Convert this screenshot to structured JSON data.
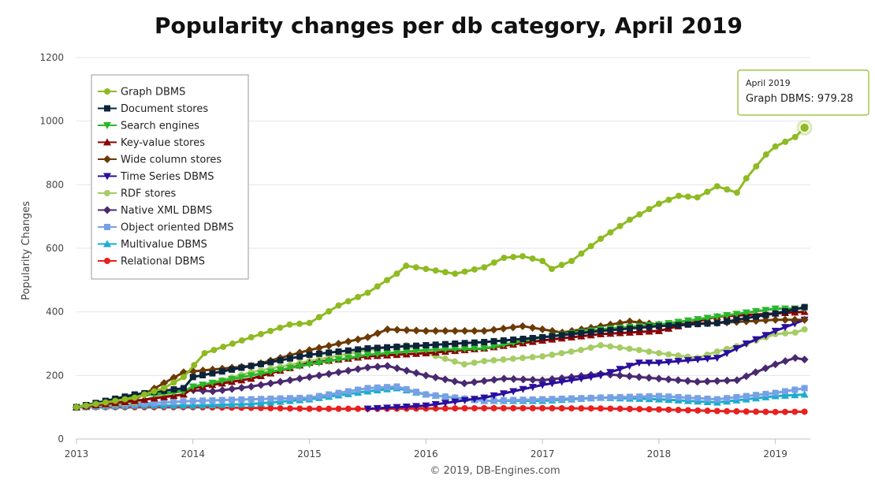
{
  "chart_data": {
    "type": "line",
    "title": "Popularity changes per db category, April 2019",
    "xlabel": "",
    "ylabel": "Popularity Changes",
    "ylim": [
      0,
      1200
    ],
    "yticks": [
      0,
      200,
      400,
      600,
      800,
      1000,
      1200
    ],
    "xlim": [
      2013,
      2019.3
    ],
    "xticks": [
      2013,
      2014,
      2015,
      2016,
      2017,
      2018,
      2019
    ],
    "grid": "horizontal",
    "legend_position": "top-left",
    "credit": "© 2019, DB-Engines.com",
    "tooltip": {
      "date": "April 2019",
      "series": "Graph DBMS",
      "value_text": "979.28",
      "x": 2019.25,
      "y": 979.28
    },
    "series": [
      {
        "name": "Graph DBMS",
        "color": "#8ebb22",
        "marker": "circle",
        "points": [
          [
            2013,
            100
          ],
          [
            2013.5,
            130
          ],
          [
            2013.75,
            160
          ],
          [
            2013.92,
            195
          ],
          [
            2014.1,
            270
          ],
          [
            2014.5,
            320
          ],
          [
            2014.83,
            360
          ],
          [
            2015,
            365
          ],
          [
            2015.25,
            420
          ],
          [
            2015.5,
            460
          ],
          [
            2015.75,
            520
          ],
          [
            2015.83,
            545
          ],
          [
            2016,
            535
          ],
          [
            2016.25,
            520
          ],
          [
            2016.5,
            540
          ],
          [
            2016.67,
            570
          ],
          [
            2016.83,
            575
          ],
          [
            2017,
            560
          ],
          [
            2017.08,
            535
          ],
          [
            2017.25,
            560
          ],
          [
            2017.5,
            630
          ],
          [
            2017.75,
            690
          ],
          [
            2018,
            740
          ],
          [
            2018.17,
            765
          ],
          [
            2018.33,
            760
          ],
          [
            2018.5,
            795
          ],
          [
            2018.67,
            775
          ],
          [
            2018.75,
            820
          ],
          [
            2018.92,
            895
          ],
          [
            2019,
            920
          ],
          [
            2019.17,
            950
          ],
          [
            2019.25,
            979.28
          ]
        ]
      },
      {
        "name": "Document stores",
        "color": "#0d233a",
        "marker": "square",
        "points": [
          [
            2013,
            100
          ],
          [
            2013.5,
            140
          ],
          [
            2013.92,
            160
          ],
          [
            2014,
            195
          ],
          [
            2014.5,
            230
          ],
          [
            2015,
            265
          ],
          [
            2015.5,
            285
          ],
          [
            2016,
            295
          ],
          [
            2016.5,
            305
          ],
          [
            2017,
            320
          ],
          [
            2017.5,
            340
          ],
          [
            2018,
            355
          ],
          [
            2018.5,
            365
          ],
          [
            2019,
            395
          ],
          [
            2019.25,
            415
          ]
        ]
      },
      {
        "name": "Search engines",
        "color": "#2ab82a",
        "marker": "triangle-down",
        "points": [
          [
            2013,
            100
          ],
          [
            2013.5,
            135
          ],
          [
            2013.92,
            150
          ],
          [
            2014,
            165
          ],
          [
            2014.5,
            200
          ],
          [
            2015,
            235
          ],
          [
            2015.5,
            265
          ],
          [
            2016,
            280
          ],
          [
            2016.5,
            285
          ],
          [
            2017,
            320
          ],
          [
            2017.5,
            345
          ],
          [
            2018,
            360
          ],
          [
            2018.5,
            385
          ],
          [
            2019,
            410
          ],
          [
            2019.25,
            410
          ]
        ]
      },
      {
        "name": "Key-value stores",
        "color": "#8b0000",
        "marker": "triangle",
        "points": [
          [
            2013,
            100
          ],
          [
            2013.5,
            120
          ],
          [
            2013.92,
            140
          ],
          [
            2014,
            160
          ],
          [
            2014.5,
            190
          ],
          [
            2015,
            240
          ],
          [
            2015.5,
            260
          ],
          [
            2016,
            270
          ],
          [
            2016.5,
            285
          ],
          [
            2017,
            310
          ],
          [
            2017.5,
            330
          ],
          [
            2018,
            340
          ],
          [
            2018.5,
            385
          ],
          [
            2019,
            395
          ],
          [
            2019.25,
            400
          ]
        ]
      },
      {
        "name": "Wide column stores",
        "color": "#6b3a05",
        "marker": "diamond",
        "points": [
          [
            2013,
            100
          ],
          [
            2013.5,
            125
          ],
          [
            2013.92,
            210
          ],
          [
            2014.5,
            230
          ],
          [
            2015,
            280
          ],
          [
            2015.5,
            320
          ],
          [
            2015.67,
            345
          ],
          [
            2016,
            340
          ],
          [
            2016.5,
            340
          ],
          [
            2016.83,
            355
          ],
          [
            2017.17,
            335
          ],
          [
            2017.5,
            355
          ],
          [
            2017.75,
            370
          ],
          [
            2018,
            360
          ],
          [
            2018.5,
            365
          ],
          [
            2019,
            375
          ],
          [
            2019.25,
            375
          ]
        ]
      },
      {
        "name": "Time Series DBMS",
        "color": "#2a0f9e",
        "marker": "triangle-down",
        "points": [
          [
            2015.5,
            95
          ],
          [
            2016,
            105
          ],
          [
            2016.5,
            130
          ],
          [
            2017,
            170
          ],
          [
            2017.5,
            200
          ],
          [
            2017.83,
            240
          ],
          [
            2018,
            240
          ],
          [
            2018.5,
            255
          ],
          [
            2018.75,
            300
          ],
          [
            2019,
            340
          ],
          [
            2019.25,
            375
          ]
        ]
      },
      {
        "name": "RDF stores",
        "color": "#a6cc66",
        "marker": "circle",
        "points": [
          [
            2013,
            100
          ],
          [
            2013.5,
            115
          ],
          [
            2014,
            160
          ],
          [
            2014.5,
            210
          ],
          [
            2015,
            245
          ],
          [
            2015.5,
            280
          ],
          [
            2015.83,
            295
          ],
          [
            2016,
            270
          ],
          [
            2016.33,
            235
          ],
          [
            2016.5,
            245
          ],
          [
            2016.83,
            255
          ],
          [
            2017,
            260
          ],
          [
            2017.33,
            280
          ],
          [
            2017.5,
            295
          ],
          [
            2017.83,
            280
          ],
          [
            2018,
            270
          ],
          [
            2018.33,
            255
          ],
          [
            2018.5,
            275
          ],
          [
            2018.75,
            300
          ],
          [
            2019,
            330
          ],
          [
            2019.17,
            335
          ],
          [
            2019.25,
            345
          ]
        ]
      },
      {
        "name": "Native XML DBMS",
        "color": "#492970",
        "marker": "diamond",
        "points": [
          [
            2013,
            100
          ],
          [
            2013.5,
            115
          ],
          [
            2013.92,
            155
          ],
          [
            2014.17,
            150
          ],
          [
            2014.5,
            165
          ],
          [
            2015,
            195
          ],
          [
            2015.5,
            225
          ],
          [
            2015.67,
            230
          ],
          [
            2016,
            200
          ],
          [
            2016.33,
            175
          ],
          [
            2016.67,
            190
          ],
          [
            2017,
            185
          ],
          [
            2017.5,
            205
          ],
          [
            2017.83,
            195
          ],
          [
            2018,
            190
          ],
          [
            2018.33,
            180
          ],
          [
            2018.67,
            185
          ],
          [
            2018.83,
            210
          ],
          [
            2019,
            235
          ],
          [
            2019.17,
            255
          ],
          [
            2019.25,
            250
          ]
        ]
      },
      {
        "name": "Object oriented DBMS",
        "color": "#77a1e5",
        "marker": "square",
        "points": [
          [
            2013,
            100
          ],
          [
            2013.5,
            110
          ],
          [
            2014,
            120
          ],
          [
            2014.5,
            125
          ],
          [
            2015,
            130
          ],
          [
            2015.5,
            160
          ],
          [
            2015.75,
            165
          ],
          [
            2016,
            140
          ],
          [
            2016.5,
            120
          ],
          [
            2017,
            125
          ],
          [
            2017.5,
            130
          ],
          [
            2018,
            135
          ],
          [
            2018.5,
            125
          ],
          [
            2019,
            145
          ],
          [
            2019.25,
            160
          ]
        ]
      },
      {
        "name": "Multivalue DBMS",
        "color": "#1aadce",
        "marker": "triangle",
        "points": [
          [
            2013,
            100
          ],
          [
            2013.5,
            105
          ],
          [
            2014,
            105
          ],
          [
            2014.5,
            110
          ],
          [
            2015,
            125
          ],
          [
            2015.5,
            150
          ],
          [
            2015.75,
            160
          ],
          [
            2016,
            140
          ],
          [
            2016.5,
            120
          ],
          [
            2017,
            120
          ],
          [
            2017.5,
            130
          ],
          [
            2018,
            125
          ],
          [
            2018.5,
            115
          ],
          [
            2019,
            135
          ],
          [
            2019.25,
            140
          ]
        ]
      },
      {
        "name": "Relational DBMS",
        "color": "#e8201f",
        "marker": "circle",
        "points": [
          [
            2013,
            100
          ],
          [
            2013.5,
            100
          ],
          [
            2014,
            100
          ],
          [
            2014.5,
            98
          ],
          [
            2015,
            95
          ],
          [
            2015.5,
            95
          ],
          [
            2016,
            96
          ],
          [
            2016.5,
            97
          ],
          [
            2017,
            97
          ],
          [
            2017.5,
            96
          ],
          [
            2018,
            93
          ],
          [
            2018.5,
            88
          ],
          [
            2019,
            85
          ],
          [
            2019.25,
            86
          ]
        ]
      }
    ]
  }
}
